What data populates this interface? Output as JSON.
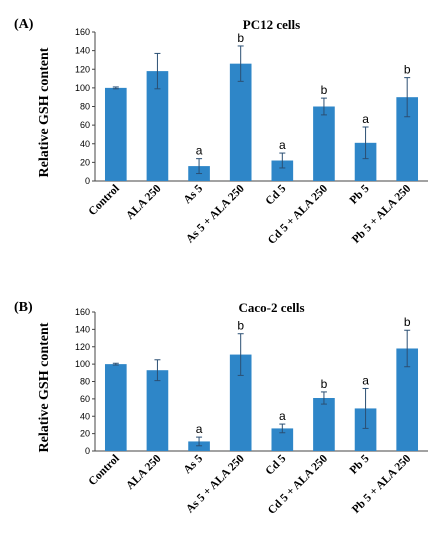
{
  "chart_data": [
    {
      "type": "bar",
      "panel_label": "(A)",
      "title": "PC12 cells",
      "ylabel": "Relative GSH content",
      "xlabel": "",
      "ylim": [
        0,
        160
      ],
      "yticks": [
        "0",
        "20",
        "40",
        "60",
        "80",
        "100",
        "120",
        "140",
        "160"
      ],
      "categories": [
        "Control",
        "ALA 250",
        "As 5",
        "As 5 + ALA 250",
        "Cd 5",
        "Cd 5 + ALA 250",
        "Pb 5",
        "Pb 5 + ALA 250"
      ],
      "values": [
        100,
        118,
        16,
        126,
        22,
        80,
        41,
        90
      ],
      "errors": [
        1,
        19,
        8,
        19,
        8,
        9,
        17,
        21
      ],
      "significance": [
        "",
        "",
        "a",
        "b",
        "a",
        "b",
        "a",
        "b"
      ],
      "bar_color": "#2e86c8",
      "grid": false
    },
    {
      "type": "bar",
      "panel_label": "(B)",
      "title": "Caco-2 cells",
      "ylabel": "Relative GSH content",
      "xlabel": "",
      "ylim": [
        0,
        160
      ],
      "yticks": [
        "0",
        "20",
        "40",
        "60",
        "80",
        "100",
        "120",
        "140",
        "160"
      ],
      "categories": [
        "Control",
        "ALA 250",
        "As 5",
        "As 5 + ALA 250",
        "Cd 5",
        "Cd 5 + ALA 250",
        "Pb 5",
        "Pb 5 + ALA 250"
      ],
      "values": [
        100,
        93,
        11,
        111,
        26,
        61,
        49,
        118
      ],
      "errors": [
        1,
        12,
        5,
        24,
        5,
        7,
        23,
        21
      ],
      "significance": [
        "",
        "",
        "a",
        "b",
        "a",
        "b",
        "a",
        "b"
      ],
      "bar_color": "#2e86c8",
      "grid": false
    }
  ]
}
